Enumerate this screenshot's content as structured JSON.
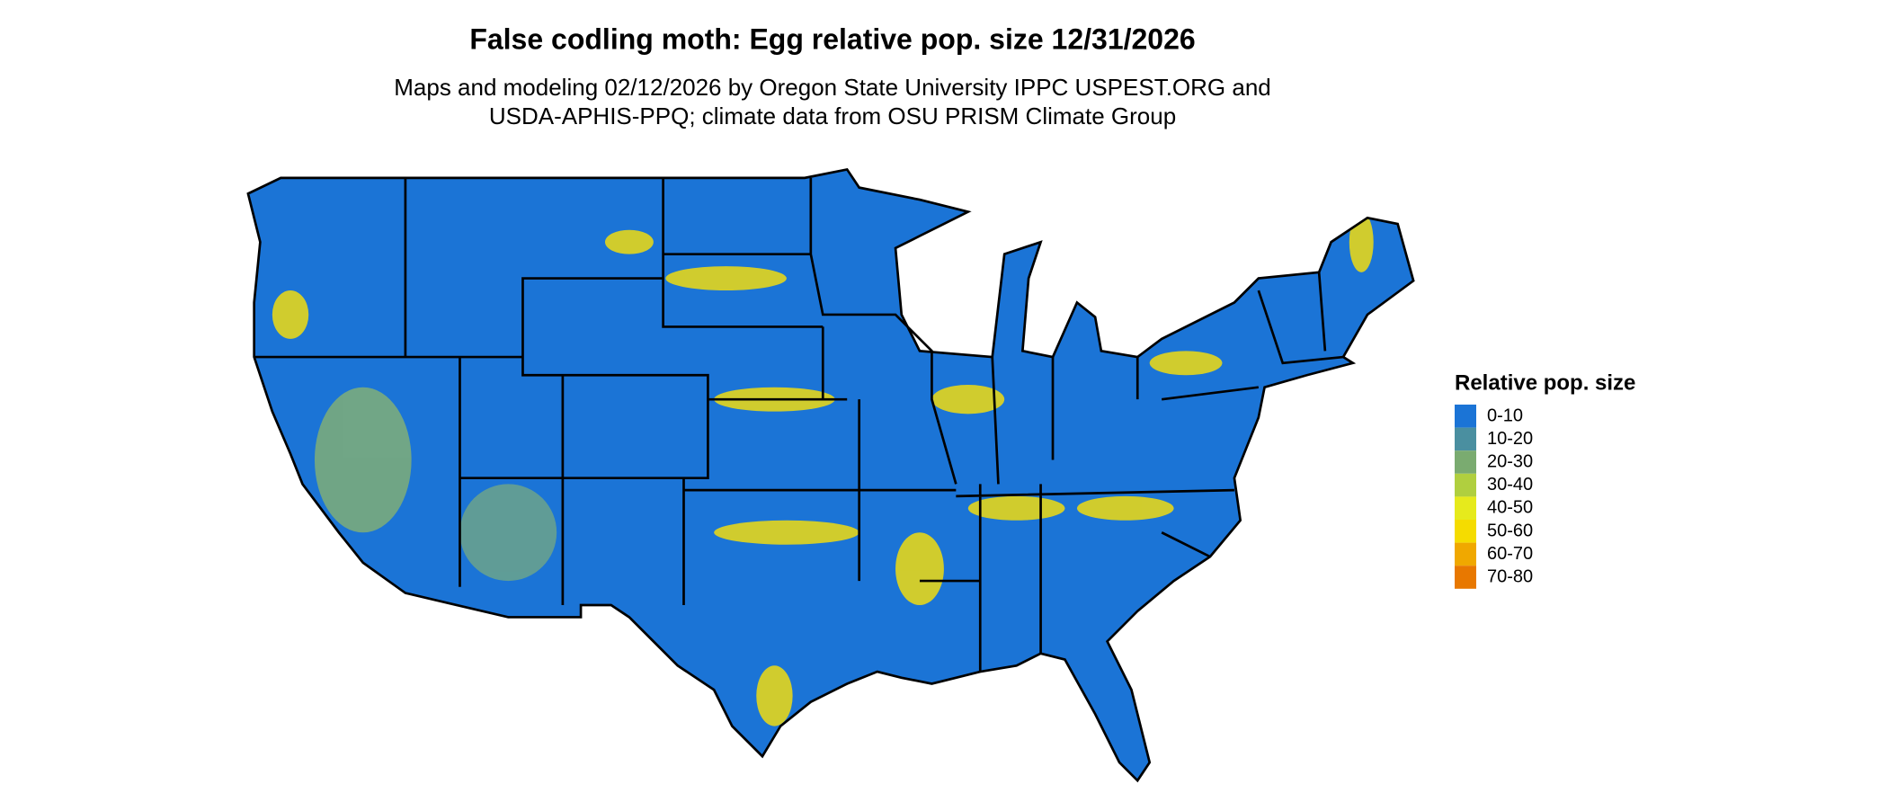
{
  "title": "False codling moth: Egg relative pop. size 12/31/2026",
  "subtitle": [
    "Maps and modeling 02/12/2026 by Oregon State University IPPC USPEST.ORG and",
    "USDA-APHIS-PPQ; climate data from OSU PRISM Climate Group"
  ],
  "legend": {
    "title": "Relative pop. size",
    "items": [
      {
        "label": "0-10",
        "color": "#1b74d6"
      },
      {
        "label": "10-20",
        "color": "#4a8fa0"
      },
      {
        "label": "20-30",
        "color": "#7aab70"
      },
      {
        "label": "30-40",
        "color": "#b0cf3f"
      },
      {
        "label": "40-50",
        "color": "#e6ea1c"
      },
      {
        "label": "50-60",
        "color": "#f5dc00"
      },
      {
        "label": "60-70",
        "color": "#f0a800"
      },
      {
        "label": "70-80",
        "color": "#e87800"
      }
    ]
  }
}
